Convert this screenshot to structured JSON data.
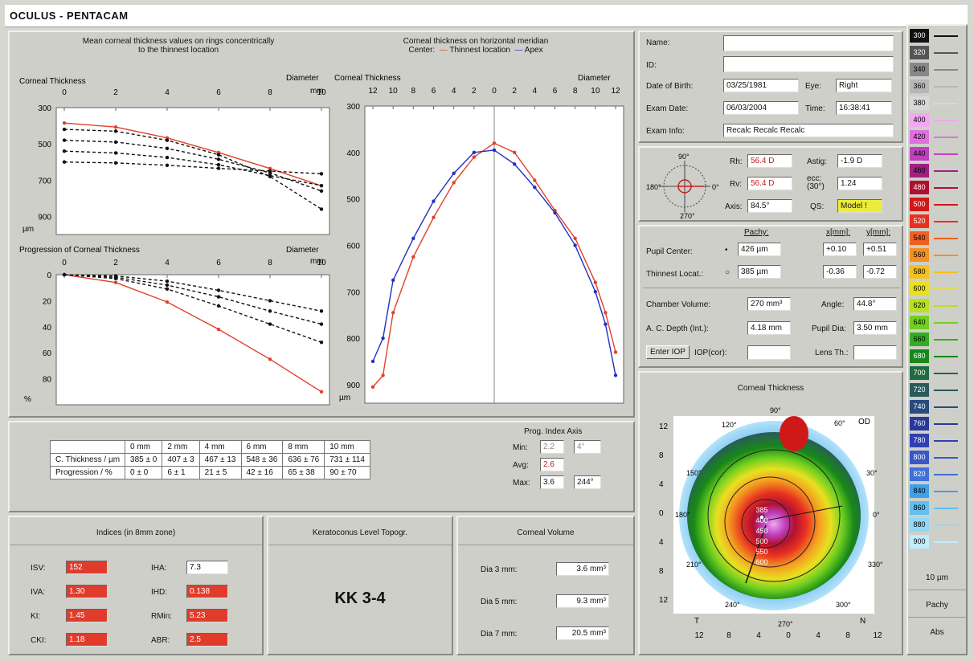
{
  "app": {
    "title": "OCULUS - PENTACAM"
  },
  "left_panel": {
    "top_title_line1": "Mean corneal thickness values on rings concentrically",
    "top_title_line2": "to the thinnest location",
    "right_title_line1": "Corneal thickness on horizontal meridian",
    "right_title_line2_prefix": "Center:",
    "right_title_thinnest": "Thinnest location",
    "right_title_apex": "Apex"
  },
  "chart_data": [
    {
      "type": "line",
      "title": "Corneal Thickness",
      "xlabel": "Diameter mm",
      "ylabel": "µm",
      "x_ticks": [
        0,
        2,
        4,
        6,
        8,
        10
      ],
      "y_ticks": [
        300,
        500,
        700,
        900
      ],
      "ylim": [
        300,
        1000
      ],
      "series": [
        {
          "color": "#e0402c",
          "x": [
            0,
            2,
            4,
            6,
            8,
            10
          ],
          "values": [
            385,
            407,
            467,
            548,
            636,
            731
          ]
        },
        {
          "color": "#111111",
          "x": [
            0,
            2,
            4,
            6,
            8,
            10
          ],
          "values": [
            480,
            490,
            525,
            585,
            660,
            760
          ]
        },
        {
          "color": "#111111",
          "x": [
            0,
            2,
            4,
            6,
            8,
            10
          ],
          "values": [
            540,
            550,
            575,
            615,
            675,
            730
          ]
        },
        {
          "color": "#111111",
          "x": [
            0,
            2,
            4,
            6,
            8,
            10
          ],
          "values": [
            600,
            605,
            618,
            635,
            650,
            665
          ]
        },
        {
          "color": "#111111",
          "x": [
            0,
            2,
            4,
            6,
            8,
            10
          ],
          "values": [
            420,
            430,
            480,
            560,
            680,
            860
          ]
        }
      ]
    },
    {
      "type": "line",
      "title": "Progression of Corneal Thickness",
      "xlabel": "Diameter mm",
      "ylabel": "%",
      "x_ticks": [
        0,
        2,
        4,
        6,
        8,
        10
      ],
      "y_ticks": [
        0,
        20,
        40,
        60,
        80
      ],
      "ylim": [
        0,
        100
      ],
      "series": [
        {
          "color": "#e0402c",
          "x": [
            0,
            2,
            4,
            6,
            8,
            10
          ],
          "values": [
            0,
            6,
            21,
            42,
            65,
            90
          ]
        },
        {
          "color": "#111111",
          "x": [
            0,
            2,
            4,
            6,
            8,
            10
          ],
          "values": [
            0,
            1,
            5,
            12,
            20,
            28
          ]
        },
        {
          "color": "#111111",
          "x": [
            0,
            2,
            4,
            6,
            8,
            10
          ],
          "values": [
            0,
            2,
            8,
            17,
            28,
            38
          ]
        },
        {
          "color": "#111111",
          "x": [
            0,
            2,
            4,
            6,
            8,
            10
          ],
          "values": [
            0,
            3,
            11,
            24,
            38,
            52
          ]
        }
      ]
    },
    {
      "type": "line",
      "title": "Corneal Thickness",
      "xlabel": "Diameter",
      "ylabel": "µm",
      "x_ticks": [
        "12",
        "10",
        "8",
        "6",
        "4",
        "2",
        "0",
        "2",
        "4",
        "6",
        "8",
        "10",
        "12"
      ],
      "y_ticks": [
        300,
        400,
        500,
        600,
        700,
        800,
        900
      ],
      "ylim": [
        300,
        940
      ],
      "series": [
        {
          "name": "Thinnest location",
          "color": "#e0402c",
          "x": [
            -12,
            -11,
            -10,
            -8,
            -6,
            -4,
            -2,
            0,
            2,
            4,
            6,
            8,
            10,
            11,
            12
          ],
          "values": [
            905,
            880,
            745,
            625,
            540,
            465,
            410,
            380,
            400,
            460,
            525,
            585,
            680,
            745,
            830
          ]
        },
        {
          "name": "Apex",
          "color": "#2030c0",
          "x": [
            -12,
            -11,
            -10,
            -8,
            -6,
            -4,
            -2,
            0,
            2,
            4,
            6,
            8,
            10,
            11,
            12
          ],
          "values": [
            850,
            800,
            675,
            585,
            505,
            445,
            400,
            395,
            425,
            475,
            530,
            600,
            700,
            770,
            880
          ]
        }
      ]
    },
    {
      "type": "table",
      "columns": [
        "",
        "0 mm",
        "2 mm",
        "4 mm",
        "6 mm",
        "8 mm",
        "10 mm"
      ],
      "rows": [
        [
          "C. Thickness / µm",
          "385 ± 0",
          "407 ± 3",
          "467 ± 13",
          "548 ± 36",
          "636 ± 76",
          "731 ± 114"
        ],
        [
          "Progression / %",
          "0 ± 0",
          "6 ± 1",
          "21 ± 5",
          "42 ± 16",
          "65 ± 38",
          "90 ± 70"
        ]
      ]
    }
  ],
  "chart_labels": {
    "c1_title": "Corneal Thickness",
    "c1_diam": "Diameter",
    "c1_mm": "mm",
    "c1_unit": "µm",
    "c2_title": "Progression of Corneal Thickness",
    "c2_diam": "Diameter",
    "c2_mm": "mm",
    "c2_unit": "%",
    "c3_title": "Corneal Thickness",
    "c3_diam": "Diameter",
    "c3_unit": "µm"
  },
  "prog_index": {
    "title": "Prog. Index Axis",
    "min_label": "Min:",
    "min_val": "2.2",
    "min_axis": "4°",
    "avg_label": "Avg:",
    "avg_val": "2.6",
    "max_label": "Max:",
    "max_val": "3.6",
    "max_axis": "244°"
  },
  "indices": {
    "title": "Indices (in 8mm zone)",
    "items": [
      {
        "label": "ISV:",
        "value": "152",
        "flag": true
      },
      {
        "label": "IVA:",
        "value": "1.30",
        "flag": true
      },
      {
        "label": "KI:",
        "value": "1.45",
        "flag": true
      },
      {
        "label": "CKI:",
        "value": "1.18",
        "flag": true
      },
      {
        "label": "IHA:",
        "value": "7.3",
        "flag": false
      },
      {
        "label": "IHD:",
        "value": "0.138",
        "flag": true
      },
      {
        "label": "RMin:",
        "value": "5.23",
        "flag": true
      },
      {
        "label": "ABR:",
        "value": "2.5",
        "flag": true
      }
    ]
  },
  "kc": {
    "title": "Keratoconus Level Topogr.",
    "value": "KK 3-4"
  },
  "volume": {
    "title": "Corneal Volume",
    "rows": [
      {
        "label": "Dia 3 mm:",
        "value": "3.6 mm³"
      },
      {
        "label": "Dia 5 mm:",
        "value": "9.3 mm³"
      },
      {
        "label": "Dia 7 mm:",
        "value": "20.5 mm³"
      }
    ]
  },
  "patient": {
    "name_label": "Name:",
    "name": "",
    "id_label": "ID:",
    "id": "",
    "dob_label": "Date of Birth:",
    "dob": "03/25/1981",
    "eye_label": "Eye:",
    "eye": "Right",
    "exam_label": "Exam Date:",
    "exam": "06/03/2004",
    "time_label": "Time:",
    "time": "16:38:41",
    "info_label": "Exam Info:",
    "info": "Recalc Recalc Recalc"
  },
  "kerat": {
    "deg90": "90°",
    "deg180": "180°",
    "deg270": "270°",
    "deg0": "0°",
    "rh_label": "Rh:",
    "rh": "56.4 D",
    "rv_label": "Rv:",
    "rv": "56.4 D",
    "axis_label": "Axis:",
    "axis": "84.5°",
    "astig_label": "Astig:",
    "astig": "-1.9 D",
    "ecc_label": "ecc:",
    "ecc_sub": "(30°)",
    "ecc": "1.24",
    "qs_label": "QS:",
    "qs": "Model !"
  },
  "pupil": {
    "pachy_header": "Pachy:",
    "x_header": "x[mm]:",
    "y_header": "y[mm]:",
    "pc_label": "Pupil Center:",
    "pc_pachy": "426 µm",
    "pc_x": "+0.10",
    "pc_y": "+0.51",
    "tl_label": "Thinnest Locat.:",
    "tl_pachy": "385 µm",
    "tl_x": "-0.36",
    "tl_y": "-0.72",
    "cv_label": "Chamber Volume:",
    "cv": "270 mm³",
    "angle_label": "Angle:",
    "angle": "44.8°",
    "acd_label": "A. C. Depth (Int.):",
    "acd": "4.18 mm",
    "pdia_label": "Pupil Dia:",
    "pdia": "3.50 mm",
    "iop_button": "Enter IOP",
    "iop_label": "IOP(cor):",
    "iop": "",
    "lens_label": "Lens Th.:",
    "lens": ""
  },
  "map": {
    "title": "Corneal Thickness",
    "od": "OD",
    "y_ticks": [
      "12",
      "8",
      "4",
      "0",
      "4",
      "8",
      "12"
    ],
    "x_ticks": [
      "12",
      "8",
      "4",
      "0",
      "4",
      "8",
      "12"
    ],
    "t": "T",
    "n": "N",
    "deg": [
      "90°",
      "60°",
      "30°",
      "0°",
      "330°",
      "300°",
      "270°",
      "240°",
      "210°",
      "180°",
      "150°",
      "120°"
    ],
    "center_values": [
      "385",
      "400",
      "450",
      "500",
      "550",
      "600"
    ]
  },
  "legend": {
    "values": [
      "300",
      "320",
      "340",
      "360",
      "380",
      "400",
      "420",
      "440",
      "460",
      "480",
      "500",
      "520",
      "540",
      "560",
      "580",
      "600",
      "620",
      "640",
      "660",
      "680",
      "700",
      "720",
      "740",
      "760",
      "780",
      "800",
      "820",
      "840",
      "860",
      "880",
      "900"
    ],
    "colors": [
      "#111111",
      "#555555",
      "#888888",
      "#b7b7b7",
      "#d8d8d8",
      "#f0a8f0",
      "#e070e0",
      "#c040c0",
      "#a02080",
      "#b01030",
      "#d01818",
      "#e83020",
      "#f06020",
      "#f59020",
      "#f5c020",
      "#e8e020",
      "#b8e020",
      "#70d020",
      "#30b020",
      "#188818",
      "#206a40",
      "#2a5a5a",
      "#2a4a80",
      "#283a98",
      "#3040b0",
      "#3858c8",
      "#4070d8",
      "#40a0e8",
      "#60c0f0",
      "#90d8f8",
      "#c0ecfc"
    ],
    "unit": "10 µm",
    "pachy": "Pachy",
    "abs": "Abs"
  }
}
